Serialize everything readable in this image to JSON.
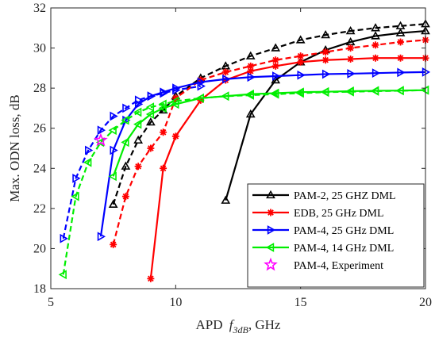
{
  "chart_data": {
    "type": "line",
    "xlabel": "APD ",
    "xlabel_symbol": "f",
    "xlabel_subscript": "3dB",
    "xlabel_suffix": ", GHz",
    "ylabel": "Max.  ODN loss, dB",
    "xlim": [
      5,
      20
    ],
    "ylim": [
      18,
      32
    ],
    "xticks": [
      "5",
      "10",
      "15",
      "20"
    ],
    "yticks": [
      "18",
      "20",
      "22",
      "24",
      "26",
      "28",
      "30",
      "32"
    ],
    "grid": false,
    "legend_position": "bottom-right",
    "series": [
      {
        "name": "PAM-2, 25 GHZ DML",
        "color": "#000000",
        "marker": "triangle-up",
        "solid": [
          [
            12,
            22.4
          ],
          [
            13,
            26.7
          ],
          [
            14,
            28.4
          ],
          [
            15,
            29.3
          ],
          [
            16,
            29.9
          ],
          [
            17,
            30.3
          ],
          [
            18,
            30.6
          ],
          [
            19,
            30.75
          ],
          [
            20,
            30.85
          ]
        ],
        "dashed": [
          [
            7.5,
            22.2
          ],
          [
            8,
            24.1
          ],
          [
            8.5,
            25.4
          ],
          [
            9,
            26.3
          ],
          [
            9.5,
            26.9
          ],
          [
            10,
            27.6
          ],
          [
            11,
            28.5
          ],
          [
            12,
            29.1
          ],
          [
            13,
            29.6
          ],
          [
            14,
            30.0
          ],
          [
            15,
            30.4
          ],
          [
            16,
            30.65
          ],
          [
            17,
            30.85
          ],
          [
            18,
            31.0
          ],
          [
            19,
            31.1
          ],
          [
            20,
            31.2
          ]
        ]
      },
      {
        "name": "EDB, 25 GHz DML",
        "color": "#ff0000",
        "marker": "asterisk",
        "solid": [
          [
            9,
            18.5
          ],
          [
            9.5,
            24.0
          ],
          [
            10,
            25.6
          ],
          [
            11,
            27.4
          ],
          [
            12,
            28.4
          ],
          [
            13,
            28.85
          ],
          [
            14,
            29.1
          ],
          [
            15,
            29.3
          ],
          [
            16,
            29.4
          ],
          [
            17,
            29.45
          ],
          [
            18,
            29.5
          ],
          [
            19,
            29.5
          ],
          [
            20,
            29.5
          ]
        ],
        "dashed": [
          [
            7.5,
            20.2
          ],
          [
            8,
            22.6
          ],
          [
            8.5,
            24.1
          ],
          [
            9,
            25.0
          ],
          [
            9.5,
            25.8
          ],
          [
            10,
            27.5
          ],
          [
            11,
            28.4
          ],
          [
            12,
            28.8
          ],
          [
            13,
            29.1
          ],
          [
            14,
            29.4
          ],
          [
            15,
            29.6
          ],
          [
            16,
            29.8
          ],
          [
            17,
            30.0
          ],
          [
            18,
            30.15
          ],
          [
            19,
            30.3
          ],
          [
            20,
            30.4
          ]
        ]
      },
      {
        "name": "PAM-4, 25 GHz DML",
        "color": "#0000ff",
        "marker": "triangle-right",
        "solid": [
          [
            7,
            20.6
          ],
          [
            7.5,
            24.9
          ],
          [
            8,
            26.4
          ],
          [
            8.5,
            27.2
          ],
          [
            9,
            27.6
          ],
          [
            9.5,
            27.8
          ],
          [
            10,
            28.0
          ],
          [
            11,
            28.3
          ],
          [
            12,
            28.45
          ],
          [
            13,
            28.55
          ],
          [
            14,
            28.6
          ],
          [
            15,
            28.65
          ],
          [
            16,
            28.7
          ],
          [
            17,
            28.72
          ],
          [
            18,
            28.75
          ],
          [
            19,
            28.78
          ],
          [
            20,
            28.8
          ]
        ],
        "dashed": [
          [
            5.5,
            20.5
          ],
          [
            6,
            23.5
          ],
          [
            6.5,
            24.9
          ],
          [
            7,
            25.9
          ],
          [
            7.5,
            26.6
          ],
          [
            8,
            27.0
          ],
          [
            8.5,
            27.4
          ],
          [
            9,
            27.6
          ],
          [
            9.5,
            27.75
          ],
          [
            10,
            27.9
          ],
          [
            11,
            28.1
          ]
        ]
      },
      {
        "name": "PAM-4, 14 GHz DML",
        "color": "#00ee00",
        "marker": "triangle-left",
        "solid": [
          [
            7.5,
            23.6
          ],
          [
            8,
            25.3
          ],
          [
            8.5,
            26.2
          ],
          [
            9,
            26.7
          ],
          [
            9.5,
            27.0
          ],
          [
            10,
            27.2
          ],
          [
            11,
            27.5
          ],
          [
            12,
            27.6
          ],
          [
            13,
            27.7
          ],
          [
            14,
            27.75
          ],
          [
            15,
            27.8
          ],
          [
            16,
            27.82
          ],
          [
            17,
            27.85
          ],
          [
            18,
            27.87
          ],
          [
            19,
            27.88
          ],
          [
            20,
            27.9
          ]
        ],
        "dashed": [
          [
            5.5,
            18.7
          ],
          [
            6,
            22.6
          ],
          [
            6.5,
            24.3
          ],
          [
            7,
            25.3
          ],
          [
            7.5,
            25.9
          ],
          [
            8,
            26.4
          ],
          [
            8.5,
            26.8
          ],
          [
            9,
            27.05
          ],
          [
            9.5,
            27.2
          ],
          [
            10,
            27.35
          ],
          [
            11,
            27.5
          ],
          [
            12,
            27.6
          ],
          [
            13,
            27.65
          ],
          [
            14,
            27.7
          ],
          [
            15,
            27.75
          ],
          [
            16,
            27.8
          ],
          [
            17,
            27.82
          ],
          [
            18,
            27.85
          ],
          [
            19,
            27.87
          ],
          [
            20,
            27.9
          ]
        ]
      },
      {
        "name": "PAM-4, Experiment",
        "color": "#ff00ff",
        "marker": "star",
        "points": [
          [
            7,
            25.4
          ]
        ]
      }
    ]
  }
}
